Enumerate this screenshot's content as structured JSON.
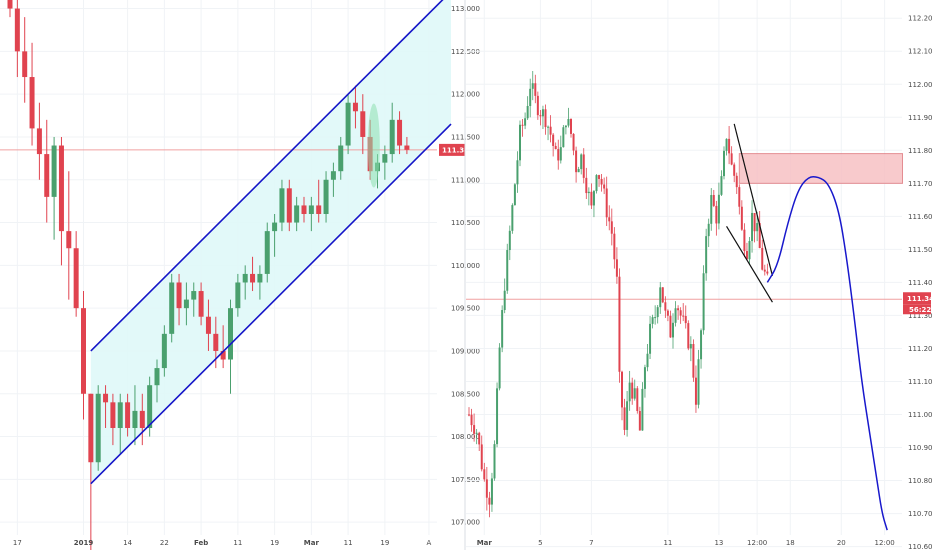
{
  "colors": {
    "up": "#4aa06e",
    "down": "#e0434f",
    "channel_line": "#1515c8",
    "channel_fill": "#dff8f8",
    "price_line": "#f0a0a0",
    "box_fill": "#f7c1c4",
    "box_stroke": "#e07a80",
    "ellipse": "#8ee0b0",
    "projection": "#1818cc",
    "grid": "#f0f3f6",
    "axis_text": "#4a4a4a",
    "tag": "#e0434f"
  },
  "chart_data": [
    {
      "type": "candlestick",
      "name": "left-daily",
      "yaxis": {
        "ylim": [
          106.85,
          113.1
        ],
        "ticks": [
          "113.000",
          "112.500",
          "112.000",
          "111.500",
          "111.000",
          "110.500",
          "110.000",
          "109.500",
          "109.000",
          "108.500",
          "108.000",
          "107.500",
          "107.000"
        ],
        "tick_values": [
          113.0,
          112.5,
          112.0,
          111.5,
          111.0,
          110.5,
          110.0,
          109.5,
          109.0,
          108.5,
          108.0,
          107.5,
          107.0
        ]
      },
      "xaxis": {
        "labels": [
          "17",
          "2019",
          "14",
          "22",
          "Feb",
          "11",
          "19",
          "Mar",
          "11",
          "19",
          "A"
        ],
        "label_index": [
          1,
          10,
          16,
          21,
          26,
          31,
          36,
          41,
          46,
          51,
          57
        ]
      },
      "current_price": 111.349,
      "current_price_label": "111.349",
      "candles": [
        [
          113.3,
          113.5,
          112.9,
          113.0
        ],
        [
          113.0,
          113.2,
          112.2,
          112.5
        ],
        [
          112.5,
          112.9,
          111.9,
          112.2
        ],
        [
          112.2,
          112.6,
          111.4,
          111.6
        ],
        [
          111.6,
          111.9,
          111.0,
          111.3
        ],
        [
          111.3,
          111.7,
          110.5,
          110.8
        ],
        [
          110.8,
          111.5,
          110.3,
          111.4
        ],
        [
          111.4,
          111.5,
          110.0,
          110.4
        ],
        [
          110.4,
          111.1,
          109.6,
          110.2
        ],
        [
          110.2,
          110.4,
          109.4,
          109.5
        ],
        [
          109.5,
          109.7,
          108.2,
          108.5
        ],
        [
          108.5,
          108.5,
          106.5,
          107.7
        ],
        [
          107.7,
          108.6,
          107.6,
          108.5
        ],
        [
          108.5,
          108.6,
          108.1,
          108.4
        ],
        [
          108.4,
          108.5,
          107.9,
          108.1
        ],
        [
          108.1,
          108.5,
          107.8,
          108.4
        ],
        [
          108.4,
          108.5,
          108.0,
          108.1
        ],
        [
          108.1,
          108.6,
          107.9,
          108.3
        ],
        [
          108.3,
          108.5,
          107.9,
          108.1
        ],
        [
          108.1,
          108.7,
          108.0,
          108.6
        ],
        [
          108.6,
          108.9,
          108.4,
          108.8
        ],
        [
          108.8,
          109.3,
          108.7,
          109.2
        ],
        [
          109.2,
          109.9,
          109.1,
          109.8
        ],
        [
          109.8,
          109.9,
          109.3,
          109.5
        ],
        [
          109.5,
          109.8,
          109.3,
          109.6
        ],
        [
          109.6,
          109.8,
          109.4,
          109.7
        ],
        [
          109.7,
          109.8,
          109.3,
          109.4
        ],
        [
          109.4,
          109.6,
          109.0,
          109.2
        ],
        [
          109.2,
          109.4,
          108.8,
          109.0
        ],
        [
          109.0,
          109.3,
          108.8,
          108.9
        ],
        [
          108.9,
          109.6,
          108.5,
          109.5
        ],
        [
          109.5,
          109.9,
          109.4,
          109.8
        ],
        [
          109.8,
          110.0,
          109.6,
          109.9
        ],
        [
          109.9,
          110.1,
          109.7,
          109.8
        ],
        [
          109.8,
          110.0,
          109.6,
          109.9
        ],
        [
          109.9,
          110.5,
          109.8,
          110.4
        ],
        [
          110.4,
          110.6,
          110.1,
          110.5
        ],
        [
          110.5,
          111.0,
          110.4,
          110.9
        ],
        [
          110.9,
          111.0,
          110.4,
          110.5
        ],
        [
          110.5,
          110.8,
          110.4,
          110.7
        ],
        [
          110.7,
          110.8,
          110.5,
          110.6
        ],
        [
          110.6,
          110.8,
          110.4,
          110.7
        ],
        [
          110.7,
          111.0,
          110.5,
          110.6
        ],
        [
          110.6,
          111.1,
          110.5,
          111.0
        ],
        [
          111.0,
          111.2,
          110.8,
          111.1
        ],
        [
          111.1,
          111.5,
          111.0,
          111.4
        ],
        [
          111.4,
          112.0,
          111.3,
          111.9
        ],
        [
          111.9,
          112.1,
          111.6,
          111.8
        ],
        [
          111.8,
          112.0,
          111.3,
          111.5
        ],
        [
          111.5,
          111.7,
          111.0,
          111.1
        ],
        [
          111.1,
          111.3,
          110.9,
          111.2
        ],
        [
          111.2,
          111.4,
          111.0,
          111.3
        ],
        [
          111.3,
          111.9,
          111.2,
          111.7
        ],
        [
          111.7,
          111.8,
          111.3,
          111.4
        ],
        [
          111.4,
          111.5,
          111.3,
          111.35
        ]
      ],
      "channel": {
        "lower": [
          [
            11,
            107.45
          ],
          [
            60,
            111.65
          ]
        ],
        "upper": [
          [
            11,
            109.0
          ],
          [
            60,
            113.2
          ]
        ]
      }
    },
    {
      "type": "candlestick",
      "name": "right-intraday",
      "yaxis": {
        "ylim": [
          110.62,
          112.24
        ],
        "ticks": [
          "112.200",
          "112.100",
          "112.000",
          "111.900",
          "111.800",
          "111.700",
          "111.600",
          "111.500",
          "111.400",
          "111.300",
          "111.200",
          "111.100",
          "111.000",
          "110.900",
          "110.800",
          "110.700",
          "110.600"
        ],
        "tick_values": [
          112.2,
          112.1,
          112.0,
          111.9,
          111.8,
          111.7,
          111.6,
          111.5,
          111.4,
          111.3,
          111.2,
          111.1,
          111.0,
          110.9,
          110.8,
          110.7,
          110.6
        ]
      },
      "xaxis": {
        "labels": [
          "Mar",
          "5",
          "7",
          "11",
          "13",
          "12:00",
          "18",
          "20",
          "12:00"
        ],
        "label_index": [
          6,
          28,
          48,
          78,
          98,
          113,
          126,
          146,
          163
        ]
      },
      "current_price": 111.349,
      "current_price_label": "111.349",
      "countdown_label": "56:22",
      "candles_seed": 7,
      "candles_path": [
        [
          0,
          111.0
        ],
        [
          3,
          110.95
        ],
        [
          6,
          110.8
        ],
        [
          8,
          110.75
        ],
        [
          10,
          110.9
        ],
        [
          12,
          111.2
        ],
        [
          14,
          111.4
        ],
        [
          16,
          111.55
        ],
        [
          18,
          111.7
        ],
        [
          20,
          111.85
        ],
        [
          22,
          111.9
        ],
        [
          24,
          112.0
        ],
        [
          26,
          111.95
        ],
        [
          28,
          111.92
        ],
        [
          30,
          111.9
        ],
        [
          32,
          111.85
        ],
        [
          34,
          111.78
        ],
        [
          36,
          111.8
        ],
        [
          38,
          111.9
        ],
        [
          40,
          111.85
        ],
        [
          42,
          111.75
        ],
        [
          44,
          111.78
        ],
        [
          46,
          111.7
        ],
        [
          48,
          111.62
        ],
        [
          50,
          111.75
        ],
        [
          52,
          111.7
        ],
        [
          54,
          111.62
        ],
        [
          56,
          111.55
        ],
        [
          58,
          111.4
        ],
        [
          59,
          111.1
        ],
        [
          61,
          110.95
        ],
        [
          63,
          111.1
        ],
        [
          65,
          111.05
        ],
        [
          67,
          110.95
        ],
        [
          69,
          111.15
        ],
        [
          71,
          111.25
        ],
        [
          73,
          111.3
        ],
        [
          75,
          111.4
        ],
        [
          77,
          111.3
        ],
        [
          79,
          111.25
        ],
        [
          81,
          111.35
        ],
        [
          83,
          111.3
        ],
        [
          85,
          111.25
        ],
        [
          87,
          111.2
        ],
        [
          89,
          111.05
        ],
        [
          91,
          111.25
        ],
        [
          93,
          111.55
        ],
        [
          95,
          111.65
        ],
        [
          97,
          111.6
        ],
        [
          99,
          111.7
        ],
        [
          101,
          111.85
        ],
        [
          103,
          111.75
        ],
        [
          105,
          111.7
        ],
        [
          107,
          111.55
        ],
        [
          109,
          111.5
        ],
        [
          111,
          111.6
        ],
        [
          113,
          111.55
        ],
        [
          115,
          111.45
        ],
        [
          117,
          111.4
        ]
      ],
      "resistance_box": {
        "x_from": 106,
        "x_to": 170,
        "y_from": 111.7,
        "y_to": 111.79
      },
      "wedge_upper": [
        [
          104,
          111.88
        ],
        [
          119,
          111.42
        ]
      ],
      "wedge_lower": [
        [
          101,
          111.57
        ],
        [
          119,
          111.34
        ]
      ],
      "projection": [
        [
          117,
          111.4
        ],
        [
          121,
          111.45
        ],
        [
          125,
          111.58
        ],
        [
          129,
          111.68
        ],
        [
          133,
          111.72
        ],
        [
          137,
          111.72
        ],
        [
          141,
          111.7
        ],
        [
          145,
          111.62
        ],
        [
          148,
          111.48
        ],
        [
          151,
          111.3
        ],
        [
          154,
          111.1
        ],
        [
          157,
          110.95
        ],
        [
          160,
          110.8
        ],
        [
          162,
          110.7
        ],
        [
          164,
          110.65
        ]
      ]
    }
  ]
}
